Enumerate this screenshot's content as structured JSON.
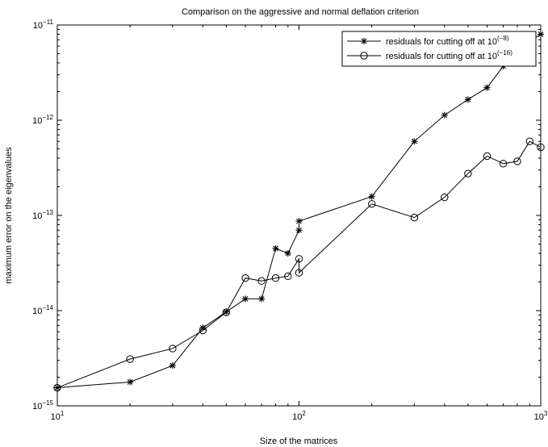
{
  "chart_data": {
    "type": "line",
    "title": "Comparison on the aggressive and normal deflation criterion",
    "xlabel": "Size of the matrices",
    "ylabel": "maximum error on the eigenvalues",
    "xscale": "log",
    "yscale": "log",
    "xlim": [
      10,
      1000
    ],
    "ylim": [
      1e-15,
      1e-11
    ],
    "grid": false,
    "legend_position": "top-right",
    "x_ticks": [
      {
        "value": 10,
        "base": "10",
        "exp": "1"
      },
      {
        "value": 100,
        "base": "10",
        "exp": "2"
      },
      {
        "value": 1000,
        "base": "10",
        "exp": "3"
      }
    ],
    "y_ticks": [
      {
        "value": 1e-15,
        "base": "10",
        "exp": "−15"
      },
      {
        "value": 1e-14,
        "base": "10",
        "exp": "−14"
      },
      {
        "value": 1e-13,
        "base": "10",
        "exp": "−13"
      },
      {
        "value": 1e-12,
        "base": "10",
        "exp": "−12"
      },
      {
        "value": 1e-11,
        "base": "10",
        "exp": "−11"
      }
    ],
    "series": [
      {
        "name": "residuals for cutting off at 10",
        "name_exp": "(−8)",
        "marker": "star",
        "color": "#000000",
        "x": [
          10,
          20,
          30,
          40,
          50,
          60,
          70,
          80,
          90,
          100,
          100,
          200,
          300,
          400,
          500,
          600,
          700,
          800,
          900,
          1000
        ],
        "y": [
          1.55e-15,
          1.78e-15,
          2.65e-15,
          6.6e-15,
          9.7e-15,
          1.33e-14,
          1.33e-14,
          4.5e-14,
          4e-14,
          7e-14,
          8.7e-14,
          1.58e-13,
          6e-13,
          1.13e-12,
          1.65e-12,
          2.2e-12,
          3.7e-12,
          5.5e-12,
          6.7e-12,
          8e-12
        ]
      },
      {
        "name": "residuals for cutting off at 10",
        "name_exp": "(−16)",
        "marker": "circle",
        "color": "#000000",
        "x": [
          10,
          20,
          30,
          40,
          50,
          60,
          70,
          80,
          90,
          100,
          100,
          200,
          300,
          400,
          500,
          600,
          700,
          800,
          900,
          1000
        ],
        "y": [
          1.55e-15,
          3.1e-15,
          4e-15,
          6.2e-15,
          9.6e-15,
          2.2e-14,
          2.05e-14,
          2.2e-14,
          2.3e-14,
          3.5e-14,
          2.5e-14,
          1.32e-13,
          9.5e-14,
          1.55e-13,
          2.75e-13,
          4.2e-13,
          3.5e-13,
          3.7e-13,
          6e-13,
          5.2e-13
        ]
      }
    ]
  }
}
